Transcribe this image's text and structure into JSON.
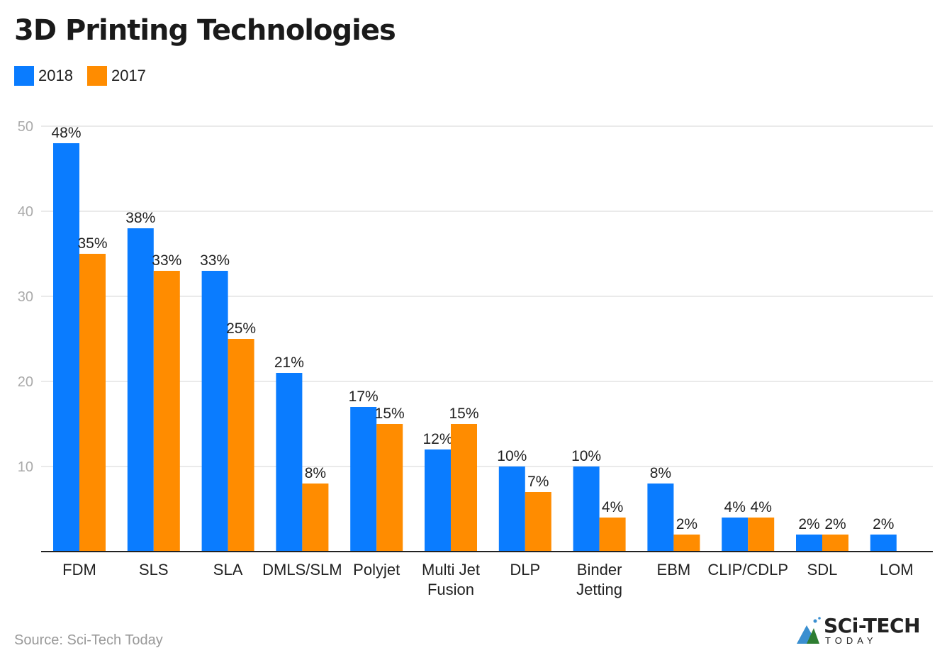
{
  "chart_data": {
    "type": "bar",
    "title": "3D Printing Technologies",
    "categories": [
      "FDM",
      "SLS",
      "SLA",
      "DMLS/SLM",
      "Polyjet",
      "Multi Jet\nFusion",
      "DLP",
      "Binder\nJetting",
      "EBM",
      "CLIP/CDLP",
      "SDL",
      "LOM"
    ],
    "series": [
      {
        "name": "2018",
        "color": "#0a7cff",
        "values": [
          48,
          38,
          33,
          21,
          17,
          12,
          10,
          10,
          8,
          4,
          2,
          2
        ]
      },
      {
        "name": "2017",
        "color": "#ff8c00",
        "values": [
          35,
          33,
          25,
          8,
          15,
          15,
          7,
          4,
          2,
          4,
          2,
          null
        ]
      }
    ],
    "value_suffix": "%",
    "ylim": [
      0,
      50
    ],
    "yticks": [
      "10",
      "20",
      "30",
      "40",
      "50"
    ],
    "grid": true,
    "legend": "top-left",
    "xlabel": "",
    "ylabel": ""
  },
  "source": "Source: Sci-Tech Today",
  "logo": {
    "text": "SCi-TECH",
    "sub": "TODAY"
  }
}
